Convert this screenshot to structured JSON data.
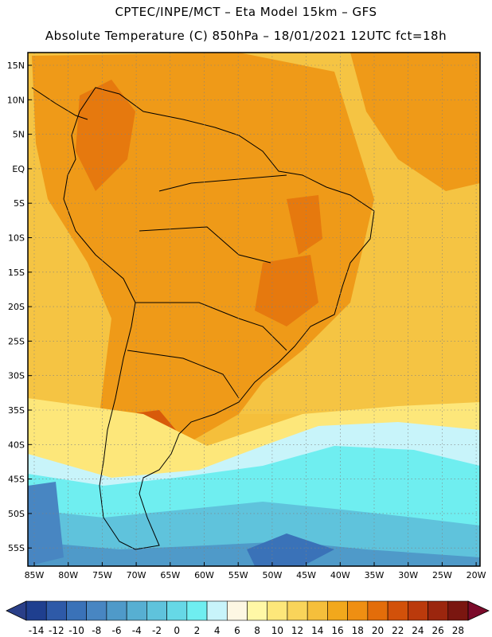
{
  "header": {
    "line1": "CPTEC/INPE/MCT –   Eta Model 15km – GFS",
    "line2": "Absolute Temperature (C) 850hPa – 18/01/2021 12UTC fct=18h"
  },
  "map": {
    "region": "South America",
    "lat_labels": [
      "15N",
      "10N",
      "5N",
      "EQ",
      "5S",
      "10S",
      "15S",
      "20S",
      "25S",
      "30S",
      "35S",
      "40S",
      "45S",
      "50S",
      "55S"
    ],
    "lon_labels": [
      "85W",
      "80W",
      "75W",
      "70W",
      "65W",
      "60W",
      "55W",
      "50W",
      "45W",
      "40W",
      "35W",
      "30W",
      "25W",
      "20W"
    ],
    "grid": "dotted"
  },
  "colorbar": {
    "labels": [
      "-14",
      "-12",
      "-10",
      "-8",
      "-6",
      "-4",
      "-2",
      "0",
      "2",
      "4",
      "6",
      "8",
      "10",
      "12",
      "14",
      "16",
      "18",
      "20",
      "22",
      "24",
      "26",
      "28"
    ],
    "colors": [
      "#1f3f8f",
      "#2e5aa8",
      "#3a72b8",
      "#4886c2",
      "#4f9ac9",
      "#57afd2",
      "#5fc3dc",
      "#66d8e6",
      "#6feef0",
      "#c8f4fa",
      "#fdf7e3",
      "#fff8a6",
      "#fde77a",
      "#f9d45a",
      "#f5bf3b",
      "#f2a81c",
      "#ef8f12",
      "#e36d0a",
      "#d2510a",
      "#bb3a0c",
      "#9b260e",
      "#7a1610"
    ],
    "low_color": "#2a3f88",
    "high_color": "#7b0a2a"
  }
}
